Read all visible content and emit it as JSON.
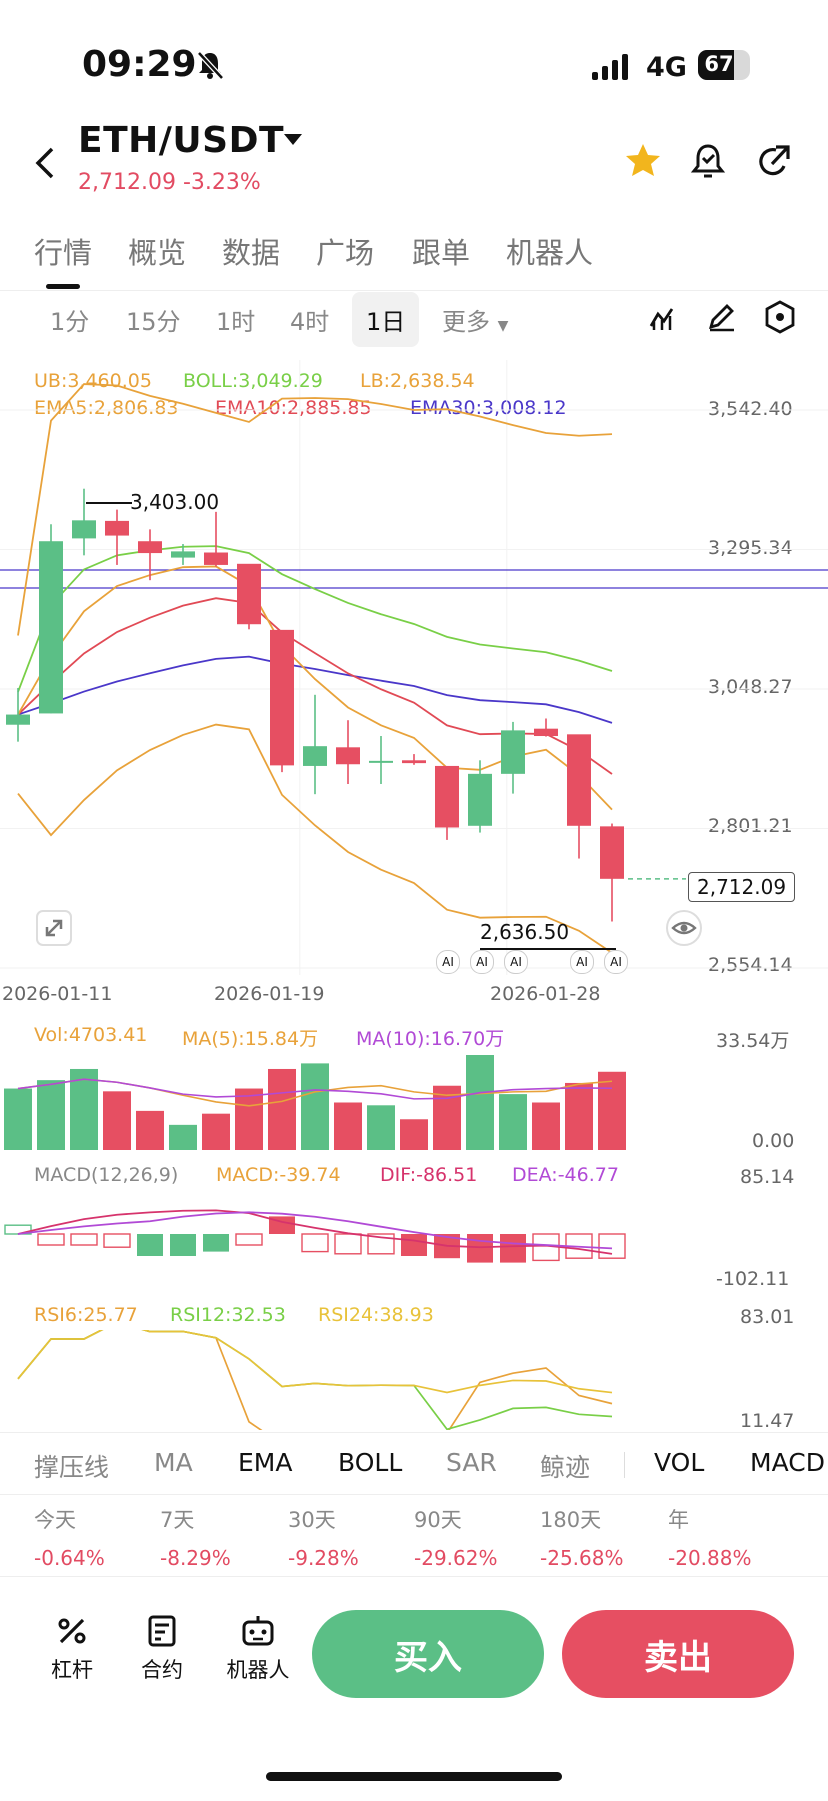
{
  "status": {
    "time": "09:29",
    "network": "4G",
    "battery": "67"
  },
  "header": {
    "pair": "ETH/USDT",
    "price": "2,712.09",
    "change": "-3.23%",
    "icons": [
      "back-icon",
      "dropdown-icon",
      "star-icon",
      "alert-bell-icon",
      "share-icon"
    ]
  },
  "tabs": [
    {
      "label": "行情",
      "active": true
    },
    {
      "label": "概览",
      "active": false
    },
    {
      "label": "数据",
      "active": false
    },
    {
      "label": "广场",
      "active": false
    },
    {
      "label": "跟单",
      "active": false
    },
    {
      "label": "机器人",
      "active": false
    }
  ],
  "intervals": [
    {
      "label": "1分",
      "active": false
    },
    {
      "label": "15分",
      "active": false
    },
    {
      "label": "1时",
      "active": false
    },
    {
      "label": "4时",
      "active": false
    },
    {
      "label": "1日",
      "active": true
    },
    {
      "label": "更多",
      "active": false
    }
  ],
  "indicators": {
    "ub": "UB:3,460.05",
    "boll": "BOLL:3,049.29",
    "lb": "LB:2,638.54",
    "ema5": "EMA5:2,806.83",
    "ema10": "EMA10:2,885.85",
    "ema30": "EMA30:3,008.12",
    "colors": {
      "ub": "#e8a23a",
      "boll": "#79cf47",
      "lb": "#e8a23a",
      "ema5": "#e8a23a",
      "ema10": "#e14a55",
      "ema30": "#4a37c9"
    }
  },
  "price_axis": [
    "3,542.40",
    "3,295.34",
    "3,048.27",
    "2,801.21",
    "2,554.14"
  ],
  "date_axis": [
    "2026-01-11",
    "2026-01-19",
    "2026-01-28"
  ],
  "annotations": {
    "high": "3,403.00",
    "low": "2,636.50",
    "last": "2,712.09",
    "ai": "AI"
  },
  "volume": {
    "vol": "Vol:4703.41",
    "ma5": "MA(5):15.84万",
    "ma10": "MA(10):16.70万",
    "axis_top": "33.54万",
    "axis_bottom": "0.00"
  },
  "macd": {
    "title": "MACD(12,26,9)",
    "macd": "MACD:-39.74",
    "dif": "DIF:-86.51",
    "dea": "DEA:-46.77",
    "axis_top": "85.14",
    "axis_bottom": "-102.11"
  },
  "rsi": {
    "rsi6": "RSI6:25.77",
    "rsi12": "RSI12:32.53",
    "rsi24": "RSI24:38.93",
    "axis_top": "83.01",
    "axis_bottom": "11.47"
  },
  "indicator_buttons": [
    {
      "label": "撑压线",
      "dark": false
    },
    {
      "label": "MA",
      "dark": false
    },
    {
      "label": "EMA",
      "dark": true
    },
    {
      "label": "BOLL",
      "dark": true
    },
    {
      "label": "SAR",
      "dark": false
    },
    {
      "label": "鲸迹",
      "dark": false
    },
    {
      "label": "VOL",
      "dark": true
    },
    {
      "label": "MACD",
      "dark": true
    }
  ],
  "performance": [
    {
      "label": "今天",
      "value": "-0.64%"
    },
    {
      "label": "7天",
      "value": "-8.29%"
    },
    {
      "label": "30天",
      "value": "-9.28%"
    },
    {
      "label": "90天",
      "value": "-29.62%"
    },
    {
      "label": "180天",
      "value": "-25.68%"
    },
    {
      "label": "年",
      "value": "-20.88%"
    }
  ],
  "bottom_bar": {
    "leverage": "杠杆",
    "contract": "合约",
    "robot": "机器人",
    "buy": "买入",
    "sell": "卖出"
  },
  "chart_data": {
    "type": "candlestick",
    "dates": [
      "2026-01-11",
      "2026-01-19",
      "2026-01-28"
    ],
    "ylim": [
      2554.14,
      3542.4
    ],
    "candles": [
      {
        "o": 2985,
        "h": 3050,
        "l": 2955,
        "c": 3003
      },
      {
        "o": 3005,
        "h": 3340,
        "l": 3005,
        "c": 3310
      },
      {
        "o": 3315,
        "h": 3403,
        "l": 3285,
        "c": 3347
      },
      {
        "o": 3346,
        "h": 3366,
        "l": 3268,
        "c": 3320
      },
      {
        "o": 3310,
        "h": 3331,
        "l": 3241,
        "c": 3289
      },
      {
        "o": 3281,
        "h": 3305,
        "l": 3268,
        "c": 3292
      },
      {
        "o": 3290,
        "h": 3362,
        "l": 3265,
        "c": 3268
      },
      {
        "o": 3270,
        "h": 3269,
        "l": 3154,
        "c": 3163
      },
      {
        "o": 3153,
        "h": 3152,
        "l": 2901,
        "c": 2913
      },
      {
        "o": 2912,
        "h": 3038,
        "l": 2862,
        "c": 2947
      },
      {
        "o": 2945,
        "h": 2993,
        "l": 2880,
        "c": 2915
      },
      {
        "o": 2920,
        "h": 2965,
        "l": 2880,
        "c": 2921
      },
      {
        "o": 2922,
        "h": 2933,
        "l": 2914,
        "c": 2917
      },
      {
        "o": 2912,
        "h": 2907,
        "l": 2781,
        "c": 2803
      },
      {
        "o": 2806,
        "h": 2922,
        "l": 2794,
        "c": 2898
      },
      {
        "o": 2898,
        "h": 2990,
        "l": 2863,
        "c": 2975
      },
      {
        "o": 2978,
        "h": 2996,
        "l": 2964,
        "c": 2965
      },
      {
        "o": 2968,
        "h": 2967,
        "l": 2748,
        "c": 2806
      },
      {
        "o": 2805,
        "h": 2810,
        "l": 2636.5,
        "c": 2712.09
      }
    ],
    "volume": [
      22,
      25,
      29,
      21,
      14,
      9,
      13,
      22,
      29,
      31,
      17,
      16,
      11,
      23,
      34,
      20,
      17,
      24,
      28
    ],
    "macd_hist": [
      4,
      -5,
      -5,
      -6,
      -10,
      -10,
      -8,
      -5,
      8,
      -8,
      -9,
      -9,
      -10,
      -11,
      -13,
      -13,
      -12,
      -11,
      -11
    ]
  }
}
